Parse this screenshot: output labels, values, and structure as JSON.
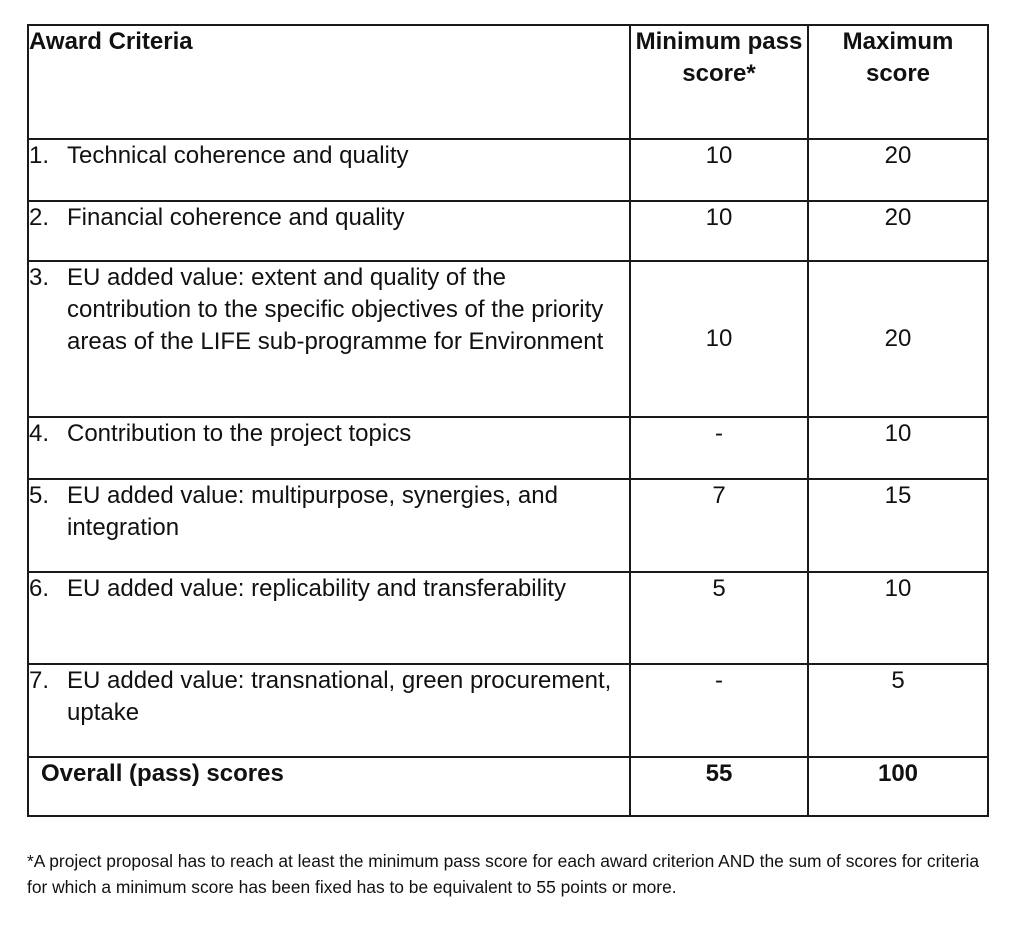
{
  "table": {
    "headers": {
      "criteria": "Award Criteria",
      "min_pass_score": "Minimum pass score*",
      "max_score": "Maximum score"
    },
    "rows": [
      {
        "number": "1.",
        "criterion": "Technical coherence and quality",
        "min": "10",
        "max": "20"
      },
      {
        "number": "2.",
        "criterion": "Financial coherence and quality",
        "min": "10",
        "max": "20"
      },
      {
        "number": "3.",
        "criterion": "EU added value: extent and quality of the contribution to the specific objectives of the priority areas of the LIFE sub-programme for Environment",
        "min": "10",
        "max": "20"
      },
      {
        "number": "4.",
        "criterion": "Contribution to the project topics",
        "min": "-",
        "max": "10"
      },
      {
        "number": "5.",
        "criterion": "EU added value: multipurpose, synergies, and integration",
        "min": "7",
        "max": "15"
      },
      {
        "number": "6.",
        "criterion": "EU added value: replicability and transferability",
        "min": "5",
        "max": "10"
      },
      {
        "number": "7.",
        "criterion": "EU added value: transnational, green procurement, uptake",
        "min": "-",
        "max": "5"
      }
    ],
    "total": {
      "label": "Overall (pass) scores",
      "min": "55",
      "max": "100"
    }
  },
  "footnote": "*A project proposal has to reach at least the minimum pass score for each award criterion AND the sum of scores for criteria for which a minimum score has been fixed has to be equivalent to 55 points or more."
}
